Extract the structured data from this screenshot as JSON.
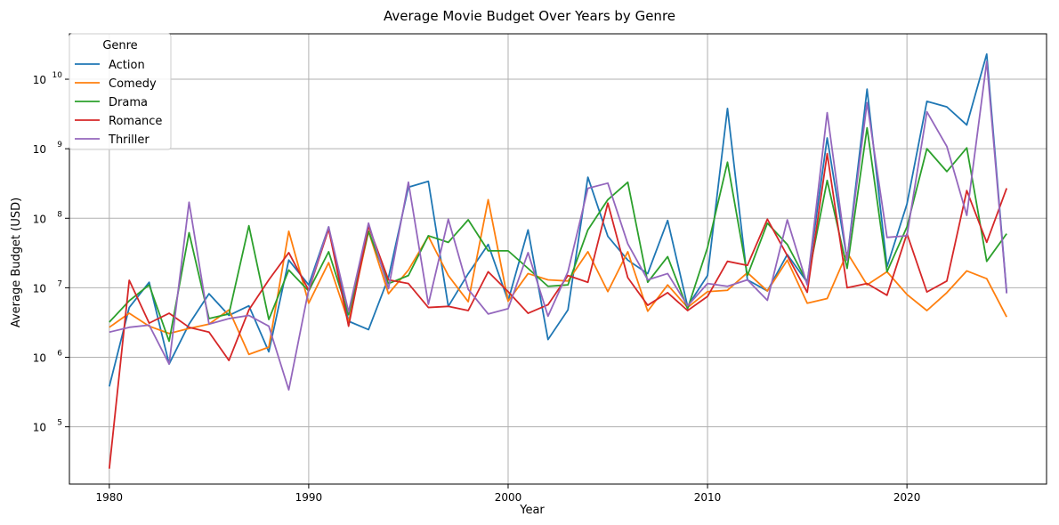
{
  "chart_data": {
    "type": "line",
    "title": "Average Movie Budget Over Years by Genre",
    "xlabel": "Year",
    "ylabel": "Average Budget (USD)",
    "yscale": "log",
    "xlim": [
      1978,
      2027
    ],
    "ylim": [
      15000,
      45000000000
    ],
    "grid": true,
    "legend_title": "Genre",
    "legend_position": "upper-left",
    "x_ticks": [
      1980,
      1990,
      2000,
      2010,
      2020
    ],
    "y_ticks": [
      {
        "value": 100000,
        "base": "10",
        "exp": "5"
      },
      {
        "value": 1000000,
        "base": "10",
        "exp": "6"
      },
      {
        "value": 10000000,
        "base": "10",
        "exp": "7"
      },
      {
        "value": 100000000,
        "base": "10",
        "exp": "8"
      },
      {
        "value": 1000000000,
        "base": "10",
        "exp": "9"
      },
      {
        "value": 10000000000,
        "base": "10",
        "exp": "10"
      }
    ],
    "x": [
      1980,
      1981,
      1982,
      1983,
      1984,
      1985,
      1986,
      1987,
      1988,
      1989,
      1990,
      1991,
      1992,
      1993,
      1994,
      1995,
      1996,
      1997,
      1998,
      1999,
      2000,
      2001,
      2002,
      2003,
      2004,
      2005,
      2006,
      2007,
      2008,
      2009,
      2010,
      2011,
      2012,
      2013,
      2014,
      2015,
      2016,
      2017,
      2018,
      2019,
      2020,
      2021,
      2022,
      2023,
      2024,
      2025
    ],
    "series": [
      {
        "name": "Action",
        "color": "#1f77b4",
        "values": [
          380000,
          5200000,
          12000000,
          800000,
          3000000,
          8200000,
          4000000,
          5500000,
          1200000,
          25000000,
          11000000,
          75000000,
          3300000,
          2500000,
          14000000,
          280000000,
          340000000,
          5400000,
          16000000,
          42000000,
          6500000,
          68000000,
          1800000,
          4800000,
          390000000,
          55000000,
          25000000,
          16000000,
          93000000,
          5400000,
          15000000,
          3800000000,
          13000000,
          9000000,
          30000000,
          12000000,
          1430000000,
          25000000,
          7200000000,
          20000000,
          160000000,
          4800000000,
          4000000000,
          2200000000,
          23000000000,
          8500000
        ]
      },
      {
        "name": "Comedy",
        "color": "#ff7f0e",
        "values": [
          2700000,
          4300000,
          2800000,
          2200000,
          2600000,
          3000000,
          4800000,
          1100000,
          1400000,
          65000000,
          6000000,
          23000000,
          3200000,
          65000000,
          8200000,
          18000000,
          55000000,
          15000000,
          6300000,
          185000000,
          6400000,
          16000000,
          13000000,
          12500000,
          33000000,
          8800000,
          33000000,
          4600000,
          11000000,
          5200000,
          8800000,
          9200000,
          16500000,
          9000000,
          25000000,
          6000000,
          7000000,
          32000000,
          11000000,
          17000000,
          8000000,
          4700000,
          8500000,
          17500000,
          13500000,
          3800000
        ]
      },
      {
        "name": "Drama",
        "color": "#2ca02c",
        "values": [
          3200000,
          6500000,
          11000000,
          1700000,
          62000000,
          3600000,
          4200000,
          78000000,
          3500000,
          18000000,
          9000000,
          33000000,
          4100000,
          65000000,
          11500000,
          15000000,
          56000000,
          45000000,
          95000000,
          34000000,
          34000000,
          19000000,
          10500000,
          11000000,
          68000000,
          185000000,
          330000000,
          12000000,
          28000000,
          5000000,
          38000000,
          640000000,
          15000000,
          85000000,
          42000000,
          12000000,
          350000000,
          19000000,
          2000000000,
          17000000,
          75000000,
          1000000000,
          470000000,
          1030000000,
          24000000,
          60000000
        ]
      },
      {
        "name": "Romance",
        "color": "#d62728",
        "values": [
          25000,
          12800000,
          3100000,
          4300000,
          2700000,
          2300000,
          900000,
          4800000,
          13000000,
          32000000,
          9200000,
          70000000,
          2800000,
          77000000,
          13000000,
          11500000,
          5200000,
          5400000,
          4700000,
          17000000,
          8800000,
          4300000,
          5700000,
          15000000,
          12000000,
          165000000,
          14000000,
          5600000,
          8500000,
          4700000,
          7500000,
          24000000,
          21000000,
          97000000,
          29000000,
          8600000,
          850000000,
          10000000,
          11500000,
          7800000,
          60000000,
          8700000,
          12500000,
          250000000,
          45000000,
          270000000
        ]
      },
      {
        "name": "Thriller",
        "color": "#9467bd",
        "values": [
          2300000,
          2700000,
          2900000,
          800000,
          170000000,
          3000000,
          3600000,
          4000000,
          2800000,
          340000,
          9500000,
          75000000,
          4500000,
          85000000,
          9700000,
          330000000,
          5800000,
          97000000,
          9500000,
          4200000,
          5000000,
          32000000,
          3900000,
          17000000,
          270000000,
          320000000,
          43000000,
          13000000,
          16000000,
          5500000,
          11500000,
          10500000,
          13000000,
          6600000,
          95000000,
          11000000,
          3300000000,
          25000000,
          4600000000,
          53000000,
          56000000,
          3400000000,
          1080000000,
          110000000,
          18000000000,
          8300000
        ]
      }
    ]
  }
}
